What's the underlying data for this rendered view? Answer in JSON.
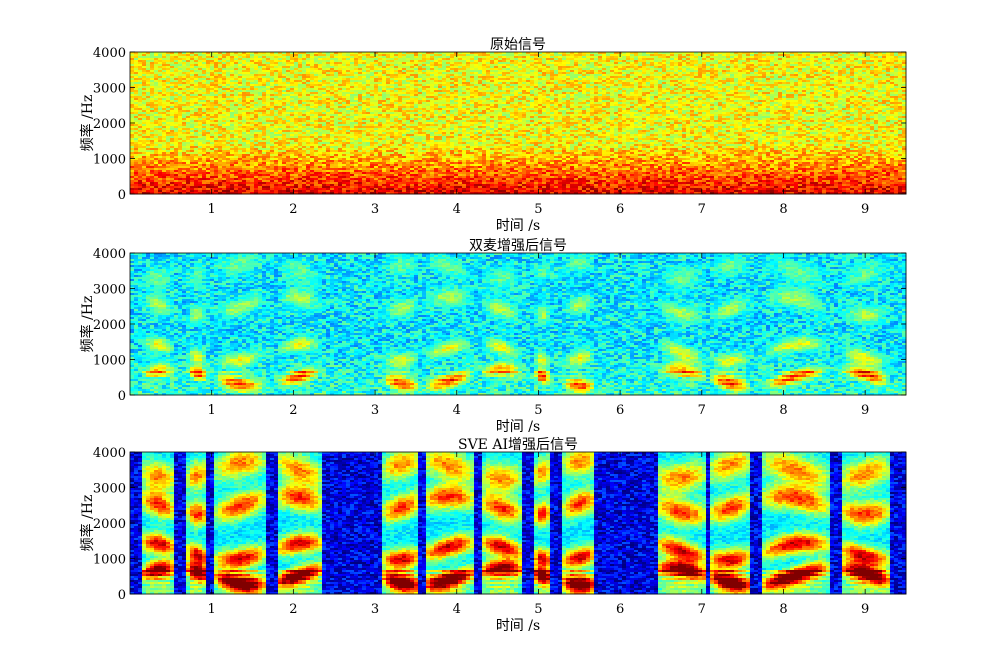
{
  "chart_data": [
    {
      "type": "heatmap",
      "title": "原始信号",
      "xlabel": "时间 /s",
      "ylabel": "频率 /Hz",
      "xlim": [
        0.0,
        9.5
      ],
      "ylim": [
        0,
        4000
      ],
      "xticks": [
        1,
        2,
        3,
        4,
        5,
        6,
        7,
        8,
        9
      ],
      "xtick_labels": [
        "1",
        "2",
        "3",
        "4",
        "5",
        "6",
        "7",
        "8",
        "9"
      ],
      "yticks": [
        0,
        1000,
        2000,
        3000,
        4000
      ],
      "ytick_labels": [
        "0",
        "1000",
        "2000",
        "3000",
        "4000"
      ],
      "colormap": "jet",
      "background_level": 0.62,
      "low_band_boost": 0.28,
      "speech_gain": 0.32,
      "speech_spread": 0.9
    },
    {
      "type": "heatmap",
      "title": "双麦增强后信号",
      "xlabel": "时间 /s",
      "ylabel": "频率 /Hz",
      "xlim": [
        0.0,
        9.5
      ],
      "ylim": [
        0,
        4000
      ],
      "xticks": [
        1,
        2,
        3,
        4,
        5,
        6,
        7,
        8,
        9
      ],
      "xtick_labels": [
        "1",
        "2",
        "3",
        "4",
        "5",
        "6",
        "7",
        "8",
        "9"
      ],
      "yticks": [
        0,
        1000,
        2000,
        3000,
        4000
      ],
      "ytick_labels": [
        "0",
        "1000",
        "2000",
        "3000",
        "4000"
      ],
      "colormap": "jet",
      "background_level": 0.36,
      "low_band_boost": 0.06,
      "speech_gain": 0.55,
      "speech_spread": 0.9
    },
    {
      "type": "heatmap",
      "title": "SVE AI增强后信号",
      "xlabel": "时间 /s",
      "ylabel": "频率 /Hz",
      "xlim": [
        0.0,
        9.5
      ],
      "ylim": [
        0,
        4000
      ],
      "xticks": [
        1,
        2,
        3,
        4,
        5,
        6,
        7,
        8,
        9
      ],
      "xtick_labels": [
        "1",
        "2",
        "3",
        "4",
        "5",
        "6",
        "7",
        "8",
        "9"
      ],
      "yticks": [
        0,
        1000,
        2000,
        3000,
        4000
      ],
      "ytick_labels": [
        "0",
        "1000",
        "2000",
        "3000",
        "4000"
      ],
      "colormap": "jet",
      "background_level": 0.1,
      "low_band_boost": 0.0,
      "speech_gain": 0.75,
      "speech_spread": 0.9,
      "speech_floor": 0.3
    }
  ],
  "speech_segments": [
    [
      0.15,
      0.55
    ],
    [
      0.7,
      0.95
    ],
    [
      1.05,
      1.65
    ],
    [
      1.8,
      2.35
    ],
    [
      3.1,
      3.55
    ],
    [
      3.6,
      4.2
    ],
    [
      4.3,
      4.8
    ],
    [
      4.95,
      5.15
    ],
    [
      5.3,
      5.7
    ],
    [
      6.45,
      7.05
    ],
    [
      7.1,
      7.6
    ],
    [
      7.75,
      8.55
    ],
    [
      8.7,
      9.3
    ]
  ],
  "formants_hz": [
    500,
    1200,
    2500,
    3500
  ],
  "colors": {
    "jet_dark_blue": "#00008f",
    "jet_red": "#d40000",
    "axis": "#000000"
  }
}
